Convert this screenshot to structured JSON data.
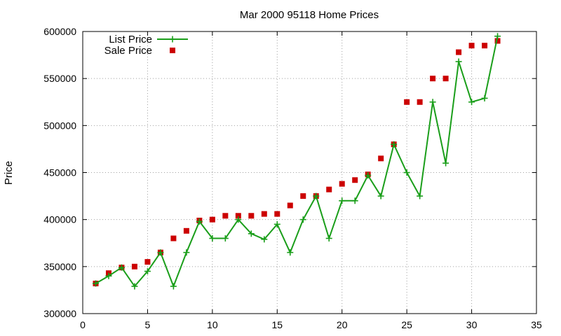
{
  "chart_data": {
    "type": "line",
    "title": "Mar 2000 95118 Home Prices",
    "xlabel": "",
    "ylabel": "Price",
    "xlim": [
      0,
      35
    ],
    "ylim": [
      300000,
      600000
    ],
    "xticks": [
      0,
      5,
      10,
      15,
      20,
      25,
      30,
      35
    ],
    "yticks": [
      300000,
      350000,
      400000,
      450000,
      500000,
      550000,
      600000
    ],
    "grid": true,
    "legend_position": "top-left",
    "series": [
      {
        "name": "List Price",
        "style": "line+cross",
        "color": "#1a9e1a",
        "x": [
          1,
          2,
          3,
          4,
          5,
          6,
          7,
          8,
          9,
          10,
          11,
          12,
          13,
          14,
          15,
          16,
          17,
          18,
          19,
          20,
          21,
          22,
          23,
          24,
          25,
          26,
          27,
          28,
          29,
          30,
          31,
          32
        ],
        "y": [
          332000,
          340000,
          349000,
          329000,
          345000,
          365000,
          329000,
          365000,
          398000,
          380000,
          380000,
          400000,
          385000,
          379000,
          395000,
          365000,
          400000,
          425000,
          380000,
          420000,
          420000,
          447000,
          425000,
          480000,
          450000,
          425000,
          525000,
          460000,
          568000,
          525000,
          529000,
          595000
        ]
      },
      {
        "name": "Sale Price",
        "style": "square",
        "color": "#cc0000",
        "x": [
          1,
          2,
          3,
          4,
          5,
          6,
          7,
          8,
          9,
          10,
          11,
          12,
          13,
          14,
          15,
          16,
          17,
          18,
          19,
          20,
          21,
          22,
          23,
          24,
          25,
          26,
          27,
          28,
          29,
          30,
          31,
          32
        ],
        "y": [
          332000,
          343000,
          349000,
          350000,
          355000,
          365000,
          380000,
          388000,
          399000,
          400000,
          404000,
          404000,
          404000,
          406000,
          406000,
          415000,
          425000,
          425000,
          432000,
          438000,
          442000,
          448000,
          465000,
          480000,
          525000,
          525000,
          550000,
          550000,
          578000,
          585000,
          585000,
          590000
        ]
      }
    ]
  }
}
